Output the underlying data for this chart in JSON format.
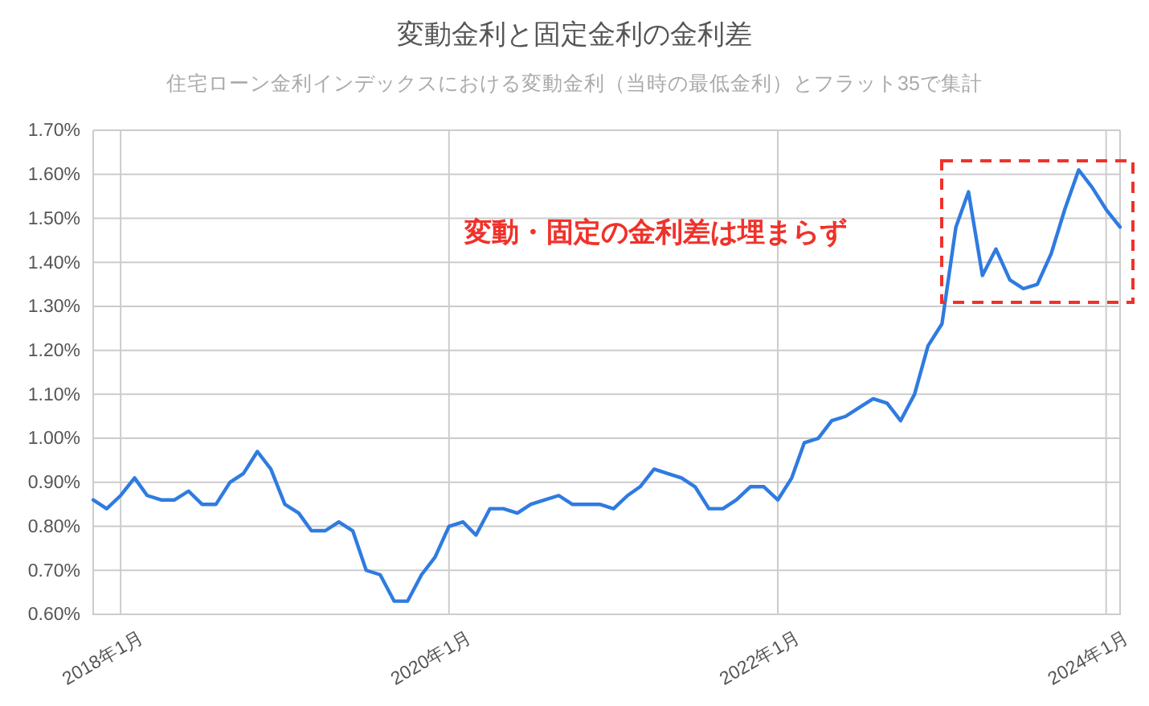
{
  "chart_data": {
    "type": "line",
    "title": "変動金利と固定金利の金利差",
    "subtitle": "住宅ローン金利インデックスにおける変動金利（当時の最低金利）とフラット35で集計",
    "x": [
      "2017-11",
      "2017-12",
      "2018-01",
      "2018-02",
      "2018-03",
      "2018-04",
      "2018-05",
      "2018-06",
      "2018-07",
      "2018-08",
      "2018-09",
      "2018-10",
      "2018-11",
      "2018-12",
      "2019-01",
      "2019-02",
      "2019-03",
      "2019-04",
      "2019-05",
      "2019-06",
      "2019-07",
      "2019-08",
      "2019-09",
      "2019-10",
      "2019-11",
      "2019-12",
      "2020-01",
      "2020-02",
      "2020-03",
      "2020-04",
      "2020-05",
      "2020-06",
      "2020-07",
      "2020-08",
      "2020-09",
      "2020-10",
      "2020-11",
      "2020-12",
      "2021-01",
      "2021-02",
      "2021-03",
      "2021-04",
      "2021-05",
      "2021-06",
      "2021-07",
      "2021-08",
      "2021-09",
      "2021-10",
      "2021-11",
      "2021-12",
      "2022-01",
      "2022-02",
      "2022-03",
      "2022-04",
      "2022-05",
      "2022-06",
      "2022-07",
      "2022-08",
      "2022-09",
      "2022-10",
      "2022-11",
      "2022-12",
      "2023-01",
      "2023-02",
      "2023-03",
      "2023-04",
      "2023-05",
      "2023-06",
      "2023-07",
      "2023-08",
      "2023-09",
      "2023-10",
      "2023-11",
      "2023-12",
      "2024-01",
      "2024-02"
    ],
    "series": [
      {
        "color": "#2f7be0",
        "values": [
          0.86,
          0.84,
          0.87,
          0.91,
          0.87,
          0.86,
          0.86,
          0.88,
          0.85,
          0.85,
          0.9,
          0.92,
          0.97,
          0.93,
          0.85,
          0.83,
          0.79,
          0.79,
          0.81,
          0.79,
          0.7,
          0.69,
          0.63,
          0.63,
          0.69,
          0.73,
          0.8,
          0.81,
          0.78,
          0.84,
          0.84,
          0.83,
          0.85,
          0.86,
          0.87,
          0.85,
          0.85,
          0.85,
          0.84,
          0.87,
          0.89,
          0.93,
          0.92,
          0.91,
          0.89,
          0.84,
          0.84,
          0.86,
          0.89,
          0.89,
          0.86,
          0.91,
          0.99,
          1.0,
          1.04,
          1.05,
          1.07,
          1.09,
          1.08,
          1.04,
          1.1,
          1.21,
          1.26,
          1.48,
          1.56,
          1.37,
          1.43,
          1.36,
          1.34,
          1.35,
          1.42,
          1.52,
          1.61,
          1.57,
          1.52,
          1.48
        ]
      }
    ],
    "xlim": [
      "2017-11",
      "2024-02"
    ],
    "xticks": [
      {
        "value": "2018-01",
        "label": "2018年1月"
      },
      {
        "value": "2020-01",
        "label": "2020年1月"
      },
      {
        "value": "2022-01",
        "label": "2022年1月"
      },
      {
        "value": "2024-01",
        "label": "2024年1月"
      }
    ],
    "ylim": [
      0.6,
      1.7
    ],
    "yticks": [
      {
        "value": 0.6,
        "label": "0.60%"
      },
      {
        "value": 0.7,
        "label": "0.70%"
      },
      {
        "value": 0.8,
        "label": "0.80%"
      },
      {
        "value": 0.9,
        "label": "0.90%"
      },
      {
        "value": 1.0,
        "label": "1.00%"
      },
      {
        "value": 1.1,
        "label": "1.10%"
      },
      {
        "value": 1.2,
        "label": "1.20%"
      },
      {
        "value": 1.3,
        "label": "1.30%"
      },
      {
        "value": 1.4,
        "label": "1.40%"
      },
      {
        "value": 1.5,
        "label": "1.50%"
      },
      {
        "value": 1.6,
        "label": "1.60%"
      },
      {
        "value": 1.7,
        "label": "1.70%"
      }
    ],
    "grid": true,
    "line_style": "solid",
    "marker": "none",
    "annotations": [
      "変動・固定の金利差は埋まらず"
    ]
  }
}
